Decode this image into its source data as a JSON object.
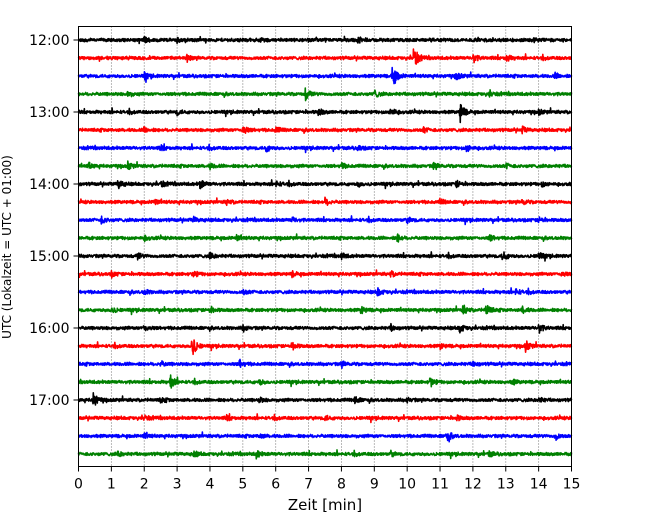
{
  "chart_data": {
    "type": "line",
    "title": "",
    "xlabel": "Zeit  [min]",
    "ylabel": "UTC (Lokalzeit = UTC + 01:00)",
    "xlim": [
      0,
      15
    ],
    "x_ticks": [
      "0",
      "1",
      "2",
      "3",
      "4",
      "5",
      "6",
      "7",
      "8",
      "9",
      "10",
      "11",
      "12",
      "13",
      "14",
      "15"
    ],
    "y_tick_labels": [
      "12:00",
      "13:00",
      "14:00",
      "15:00",
      "16:00",
      "17:00"
    ],
    "grid": "vertical-dotted",
    "trace_interval_minutes": 15,
    "trace_colors": [
      "#000000",
      "#ff0000",
      "#0000ff",
      "#008000"
    ],
    "series": [
      {
        "start": "12:00",
        "events": [
          [
            2.0,
            0.25
          ],
          [
            3.0,
            0.2
          ],
          [
            5.5,
            0.2
          ],
          [
            8.5,
            0.3
          ],
          [
            13.8,
            0.2
          ]
        ]
      },
      {
        "start": "12:15",
        "events": [
          [
            3.3,
            0.2
          ],
          [
            10.2,
            1.0
          ],
          [
            12.0,
            0.4
          ],
          [
            13.0,
            0.35
          ]
        ]
      },
      {
        "start": "12:30",
        "events": [
          [
            2.0,
            0.25
          ],
          [
            9.55,
            1.0
          ],
          [
            11.5,
            0.3
          ],
          [
            14.5,
            0.2
          ]
        ]
      },
      {
        "start": "12:45",
        "events": [
          [
            1.5,
            0.2
          ],
          [
            6.9,
            0.5
          ],
          [
            9.0,
            0.3
          ],
          [
            12.5,
            0.2
          ]
        ]
      },
      {
        "start": "13:00",
        "events": [
          [
            3.0,
            0.2
          ],
          [
            7.3,
            0.3
          ],
          [
            9.5,
            0.4
          ],
          [
            11.6,
            0.9
          ],
          [
            14.0,
            0.2
          ]
        ]
      },
      {
        "start": "13:15",
        "events": [
          [
            2.0,
            0.2
          ],
          [
            5.0,
            0.4
          ],
          [
            6.0,
            0.25
          ],
          [
            10.5,
            0.2
          ],
          [
            13.5,
            0.25
          ]
        ]
      },
      {
        "start": "13:30",
        "events": [
          [
            2.5,
            0.2
          ],
          [
            5.7,
            0.3
          ],
          [
            8.5,
            0.2
          ],
          [
            11.8,
            0.3
          ]
        ]
      },
      {
        "start": "13:45",
        "events": [
          [
            0.3,
            0.25
          ],
          [
            1.5,
            0.3
          ],
          [
            4.0,
            0.2
          ],
          [
            8.0,
            0.2
          ],
          [
            10.8,
            0.25
          ],
          [
            13.0,
            0.2
          ]
        ]
      },
      {
        "start": "14:00",
        "events": [
          [
            1.2,
            0.4
          ],
          [
            2.5,
            0.25
          ],
          [
            3.7,
            0.35
          ],
          [
            6.0,
            0.25
          ],
          [
            8.5,
            0.2
          ],
          [
            11.5,
            0.25
          ],
          [
            14.1,
            0.2
          ]
        ]
      },
      {
        "start": "14:15",
        "events": [
          [
            2.3,
            0.2
          ],
          [
            4.5,
            0.2
          ],
          [
            7.5,
            0.3
          ],
          [
            11.0,
            0.2
          ],
          [
            13.5,
            0.2
          ]
        ]
      },
      {
        "start": "14:30",
        "events": [
          [
            0.7,
            0.3
          ],
          [
            3.5,
            0.2
          ],
          [
            6.5,
            0.2
          ],
          [
            10.0,
            0.25
          ],
          [
            14.0,
            0.2
          ]
        ]
      },
      {
        "start": "14:45",
        "events": [
          [
            2.0,
            0.2
          ],
          [
            4.8,
            0.2
          ],
          [
            9.7,
            0.3
          ],
          [
            12.5,
            0.25
          ]
        ]
      },
      {
        "start": "15:00",
        "events": [
          [
            1.8,
            0.25
          ],
          [
            4.0,
            0.25
          ],
          [
            8.0,
            0.2
          ],
          [
            12.9,
            0.45
          ],
          [
            14.0,
            0.3
          ]
        ]
      },
      {
        "start": "15:15",
        "events": [
          [
            1.0,
            0.2
          ],
          [
            3.5,
            0.25
          ],
          [
            6.5,
            0.2
          ],
          [
            9.5,
            0.2
          ],
          [
            14.7,
            0.2
          ]
        ]
      },
      {
        "start": "15:30",
        "events": [
          [
            2.0,
            0.2
          ],
          [
            5.0,
            0.2
          ],
          [
            9.1,
            0.3
          ],
          [
            13.3,
            0.25
          ]
        ]
      },
      {
        "start": "15:45",
        "events": [
          [
            1.0,
            0.25
          ],
          [
            4.0,
            0.25
          ],
          [
            8.6,
            0.3
          ],
          [
            11.7,
            0.4
          ],
          [
            12.4,
            0.45
          ],
          [
            13.5,
            0.3
          ]
        ]
      },
      {
        "start": "16:00",
        "events": [
          [
            2.0,
            0.3
          ],
          [
            5.0,
            0.25
          ],
          [
            9.5,
            0.25
          ],
          [
            11.6,
            0.35
          ],
          [
            14.0,
            0.4
          ]
        ]
      },
      {
        "start": "16:15",
        "events": [
          [
            3.45,
            1.0
          ],
          [
            6.5,
            0.3
          ],
          [
            11.0,
            0.2
          ],
          [
            13.6,
            0.45
          ]
        ]
      },
      {
        "start": "16:30",
        "events": [
          [
            2.5,
            0.2
          ],
          [
            4.9,
            0.3
          ],
          [
            8.0,
            0.2
          ],
          [
            12.0,
            0.2
          ]
        ]
      },
      {
        "start": "16:45",
        "events": [
          [
            2.8,
            0.55
          ],
          [
            5.5,
            0.2
          ],
          [
            10.7,
            0.4
          ],
          [
            13.2,
            0.2
          ]
        ]
      },
      {
        "start": "17:00",
        "events": [
          [
            0.45,
            0.6
          ],
          [
            2.5,
            0.2
          ],
          [
            5.5,
            0.2
          ],
          [
            8.4,
            0.3
          ],
          [
            10.0,
            0.2
          ],
          [
            14.0,
            0.2
          ]
        ]
      },
      {
        "start": "17:15",
        "events": [
          [
            2.0,
            0.2
          ],
          [
            4.5,
            0.2
          ],
          [
            7.5,
            0.2
          ],
          [
            11.5,
            0.2
          ]
        ]
      },
      {
        "start": "17:30",
        "events": [
          [
            2.0,
            0.2
          ],
          [
            5.5,
            0.2
          ],
          [
            11.2,
            0.5
          ],
          [
            14.5,
            0.3
          ]
        ]
      },
      {
        "start": "17:45",
        "events": [
          [
            1.2,
            0.2
          ],
          [
            3.5,
            0.25
          ],
          [
            5.4,
            0.35
          ],
          [
            9.5,
            0.2
          ],
          [
            12.5,
            0.2
          ]
        ]
      }
    ]
  }
}
